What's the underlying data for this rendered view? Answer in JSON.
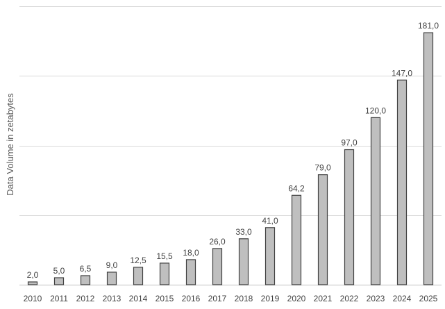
{
  "chart_data": {
    "type": "bar",
    "title": "",
    "xlabel": "",
    "ylabel": "Data Volume in zetabytes",
    "categories": [
      "2010",
      "2011",
      "2012",
      "2013",
      "2014",
      "2015",
      "2016",
      "2017",
      "2018",
      "2019",
      "2020",
      "2021",
      "2022",
      "2023",
      "2024",
      "2025"
    ],
    "values": [
      2.0,
      5.0,
      6.5,
      9.0,
      12.5,
      15.5,
      18.0,
      26.0,
      33.0,
      41.0,
      64.2,
      79.0,
      97.0,
      120.0,
      147.0,
      181.0
    ],
    "value_labels": [
      "2,0",
      "5,0",
      "6,5",
      "9,0",
      "12,5",
      "15,5",
      "18,0",
      "26,0",
      "33,0",
      "41,0",
      "64,2",
      "79,0",
      "97,0",
      "120,0",
      "147,0",
      "181,0"
    ],
    "ylim": [
      0,
      200
    ],
    "y_gridlines": [
      0,
      50,
      100,
      150,
      200
    ],
    "y_tick_labels_shown": false,
    "grid": true,
    "legend": "none",
    "colors": {
      "bar_fill": "#bfbfbf",
      "bar_stroke": "#404040",
      "gridline": "#d9d9d9",
      "text": "#404040"
    }
  }
}
